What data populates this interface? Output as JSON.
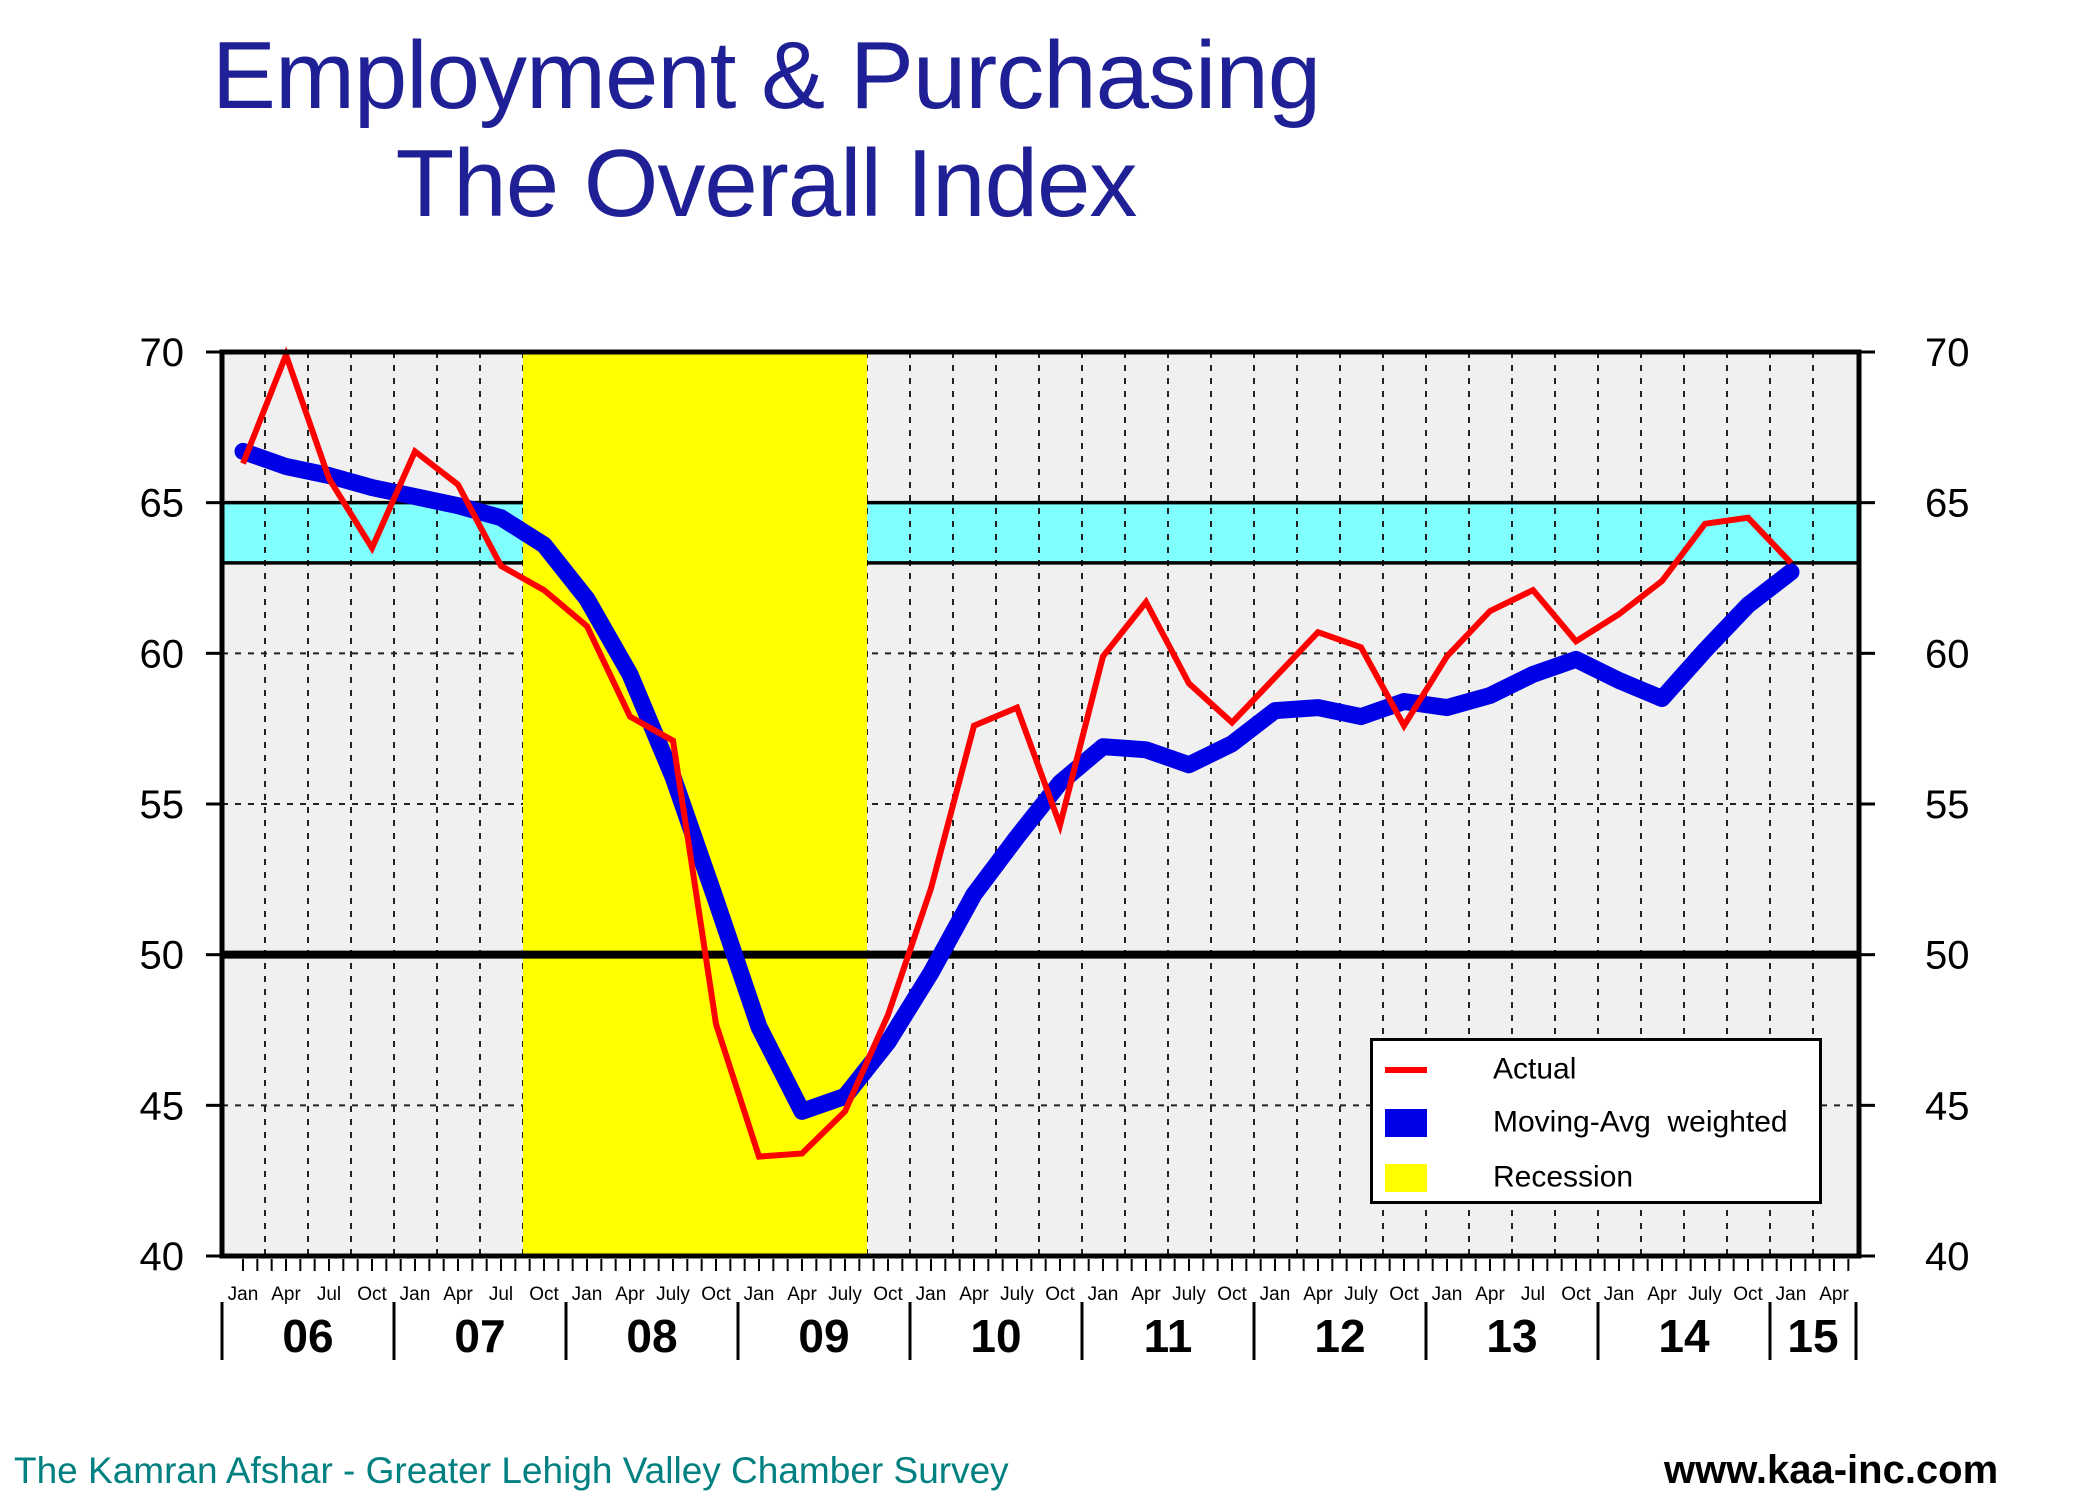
{
  "title": {
    "line1": "Employment & Purchasing",
    "line2": "The Overall Index"
  },
  "footer": {
    "left": "The Kamran Afshar - Greater Lehigh Valley Chamber Survey",
    "right": "www.kaa-inc.com"
  },
  "legend": {
    "items": [
      {
        "label": "Actual",
        "swatch": "line",
        "color": "#ff0000"
      },
      {
        "label": "Moving-Avg  weighted",
        "swatch": "box",
        "color": "#0000e6"
      },
      {
        "label": "Recession",
        "swatch": "box",
        "color": "#ffff00"
      }
    ]
  },
  "colors": {
    "title_navy": "#1f1f96",
    "actual_red": "#ff0000",
    "moving_avg_blue": "#0000e6",
    "recession_yellow": "#ffff00",
    "target_band_cyan": "#80ffff",
    "plot_background": "#f0f0f0",
    "footer_teal": "#008080",
    "axis_black": "#000000"
  },
  "chart_data": {
    "type": "line",
    "title": "Employment & Purchasing - The Overall Index",
    "x_unit": "quarters from Jan 2006 to Jan 2015",
    "month_labels": [
      "Jan",
      "Apr",
      "Jul",
      "Oct",
      "Jan",
      "Apr",
      "Jul",
      "Oct",
      "Jan",
      "Apr",
      "July",
      "Oct",
      "Jan",
      "Apr",
      "July",
      "Oct",
      "Jan",
      "Apr",
      "July",
      "Oct",
      "Jan",
      "Apr",
      "July",
      "Oct",
      "Jan",
      "Apr",
      "July",
      "Oct",
      "Jan",
      "Apr",
      "Jul",
      "Oct",
      "Jan",
      "Apr",
      "July",
      "Oct",
      "Jan",
      "Apr"
    ],
    "years": [
      {
        "label": "06",
        "quarter_count": 4
      },
      {
        "label": "07",
        "quarter_count": 4
      },
      {
        "label": "08",
        "quarter_count": 4
      },
      {
        "label": "09",
        "quarter_count": 4
      },
      {
        "label": "10",
        "quarter_count": 4
      },
      {
        "label": "11",
        "quarter_count": 4
      },
      {
        "label": "12",
        "quarter_count": 4
      },
      {
        "label": "13",
        "quarter_count": 4
      },
      {
        "label": "14",
        "quarter_count": 4
      },
      {
        "label": "15",
        "quarter_count": 2
      }
    ],
    "series": [
      {
        "name": "Actual",
        "color": "#ff0000",
        "values": [
          66.3,
          69.9,
          65.8,
          63.5,
          66.7,
          65.6,
          62.9,
          62.1,
          60.9,
          57.9,
          57.1,
          47.7,
          43.3,
          43.4,
          44.8,
          48.0,
          52.2,
          57.6,
          58.2,
          54.3,
          59.9,
          61.7,
          59.0,
          57.7,
          59.2,
          60.7,
          60.2,
          57.6,
          59.9,
          61.4,
          62.1,
          60.4,
          61.3,
          62.4,
          64.3,
          64.5,
          63.0
        ]
      },
      {
        "name": "Moving-Avg weighted",
        "color": "#0000e6",
        "values": [
          66.7,
          66.2,
          65.9,
          65.5,
          65.2,
          64.9,
          64.5,
          63.6,
          61.8,
          59.3,
          55.9,
          51.8,
          47.6,
          44.8,
          45.3,
          47.1,
          49.4,
          52.0,
          53.9,
          55.7,
          56.9,
          56.8,
          56.3,
          57.0,
          58.1,
          58.2,
          57.9,
          58.4,
          58.2,
          58.6,
          59.3,
          59.8,
          59.1,
          58.5,
          60.1,
          61.6,
          62.7
        ]
      }
    ],
    "ylim": [
      40,
      70
    ],
    "y_ticks": [
      40,
      45,
      50,
      55,
      60,
      65,
      70
    ],
    "y_dashed_gridlines": [
      45,
      55,
      60
    ],
    "y_solid_lines": [
      63,
      65
    ],
    "y_bold_line": 50,
    "target_band": {
      "from": 63,
      "to": 65,
      "color": "#80ffff"
    },
    "recession_band": {
      "from_quarter_index": 7,
      "to_quarter_index": 15,
      "label": "Oct 2007 - Oct 2009",
      "color": "#ffff00"
    },
    "grid": "quarterly vertical dashed lines; hidden under recession band",
    "legend_position": "lower right inside plot"
  }
}
